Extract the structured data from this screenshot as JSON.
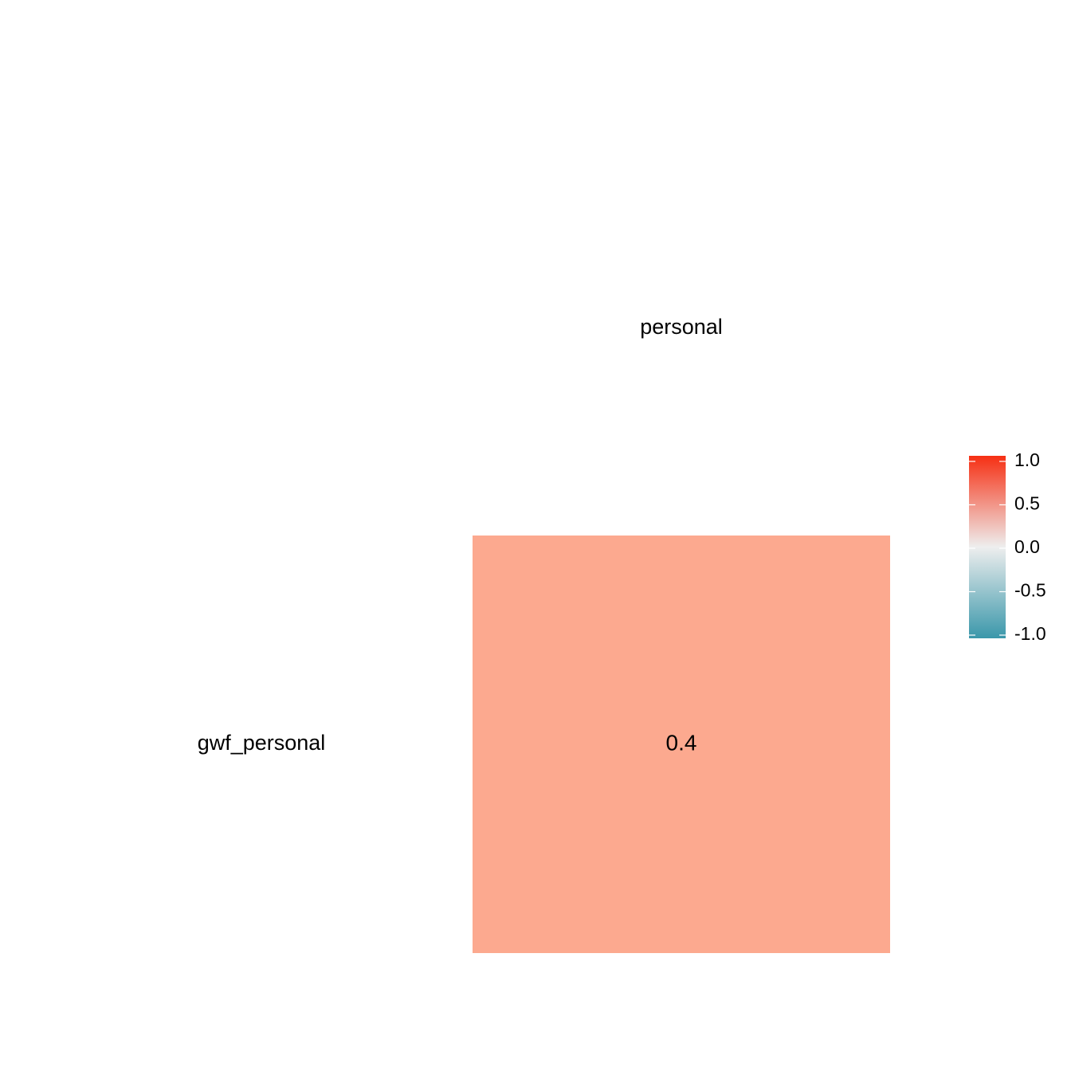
{
  "chart_data": {
    "type": "heatmap",
    "title": "",
    "x_categories": [
      "personal"
    ],
    "y_categories": [
      "gwf_personal"
    ],
    "cells": [
      {
        "x": "personal",
        "y": "gwf_personal",
        "value": 0.4,
        "label": "0.4",
        "color": "#FCA98F"
      }
    ],
    "color_scale": {
      "min": -1.0,
      "max": 1.0,
      "low_color": "#3A97AA",
      "mid_color": "#EEEEEE",
      "high_color": "#F62F13",
      "ticks": [
        1.0,
        0.5,
        0.0,
        -0.5,
        -1.0
      ],
      "tick_labels": [
        "1.0",
        "0.5",
        "0.0",
        "-0.5",
        "-1.0"
      ]
    },
    "legend_position": "right",
    "grid": false
  }
}
